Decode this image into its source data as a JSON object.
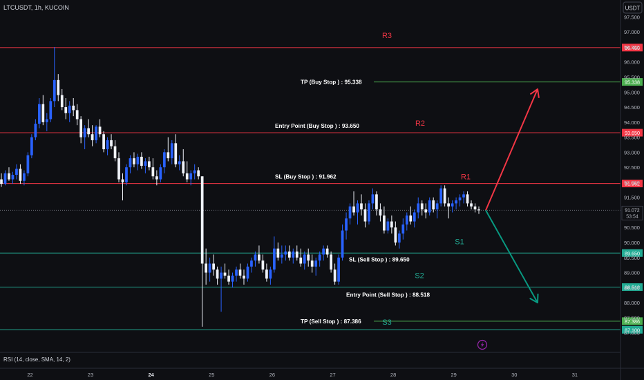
{
  "header": {
    "symbol_info": "LTCUSDT, 1h, KUCOIN",
    "currency_button": "USDT"
  },
  "footer": {
    "rsi_label": "RSI (14, close, SMA, 14, 2)"
  },
  "colors": {
    "background": "#0e0f13",
    "up_candle": "#2962ff",
    "down_candle": "#f0f3fa",
    "resistance": "#f23645",
    "support": "#22ab94",
    "tp_line": "#4caf50",
    "text": "#d1d4dc",
    "muted_text": "#b2b5be",
    "arrow_up": "#f23645",
    "arrow_down": "#089981",
    "lightning": "#9c27b0"
  },
  "chart_data": {
    "type": "candlestick",
    "title": "LTCUSDT, 1h, KUCOIN",
    "ylim": [
      86.9,
      97.9
    ],
    "y_ticks": [
      "97.500",
      "97.000",
      "96.500",
      "96.000",
      "95.500",
      "95.000",
      "94.500",
      "94.000",
      "93.500",
      "93.000",
      "92.500",
      "92.000",
      "91.500",
      "91.000",
      "90.500",
      "90.000",
      "89.500",
      "89.000",
      "88.500",
      "88.000",
      "87.500",
      "87.000"
    ],
    "x_ticks": [
      {
        "label": "22",
        "bold": false
      },
      {
        "label": "23",
        "bold": false
      },
      {
        "label": "24",
        "bold": true
      },
      {
        "label": "25",
        "bold": false
      },
      {
        "label": "26",
        "bold": false
      },
      {
        "label": "27",
        "bold": false
      },
      {
        "label": "28",
        "bold": false
      },
      {
        "label": "29",
        "bold": false
      },
      {
        "label": "30",
        "bold": false
      },
      {
        "label": "31",
        "bold": false
      }
    ],
    "current_price": "91.072",
    "countdown": "53:54",
    "levels": [
      {
        "name": "R3",
        "price": 96.48,
        "price_label": "96.480",
        "color": "#f23645",
        "kind": "resistance",
        "text": "R3"
      },
      {
        "name": "TP_buy",
        "price": 95.338,
        "price_label": "95.338",
        "color": "#4caf50",
        "kind": "tp",
        "text": "TP (Buy Stop ) : 95.338"
      },
      {
        "name": "R2",
        "price": 93.65,
        "price_label": "93.650",
        "color": "#f23645",
        "kind": "resistance",
        "text": "R2",
        "sub": "Entry Point (Buy Stop ) : 93.650"
      },
      {
        "name": "R1",
        "price": 91.962,
        "price_label": "91.962",
        "color": "#f23645",
        "kind": "resistance",
        "text": "R1",
        "sub": "SL (Buy Stop ) : 91.962"
      },
      {
        "name": "S1",
        "price": 89.65,
        "price_label": "89.650",
        "color": "#22ab94",
        "kind": "support",
        "text": "S1",
        "sub": "SL (Sell Stop ) : 89.650"
      },
      {
        "name": "S2",
        "price": 88.518,
        "price_label": "88.518",
        "color": "#22ab94",
        "kind": "support",
        "text": "S2",
        "sub": "Entry Point (Sell Stop ) : 88.518"
      },
      {
        "name": "TP_sell",
        "price": 87.386,
        "price_label": "87.386",
        "color": "#4caf50",
        "kind": "tp",
        "text": "TP (Sell Stop ) : 87.386",
        "sub_s3": "S3"
      },
      {
        "name": "S3",
        "price": 87.1,
        "price_label": "87.100",
        "color": "#22ab94",
        "kind": "support"
      }
    ],
    "candles": [
      [
        92.1,
        92.3,
        91.85,
        91.95
      ],
      [
        91.95,
        92.4,
        91.9,
        92.3
      ],
      [
        92.3,
        92.5,
        92.05,
        92.1
      ],
      [
        92.1,
        92.35,
        91.95,
        92.25
      ],
      [
        92.25,
        92.6,
        92.1,
        92.45
      ],
      [
        92.45,
        92.6,
        91.95,
        92.05
      ],
      [
        92.05,
        92.4,
        91.9,
        92.3
      ],
      [
        92.3,
        93.0,
        92.2,
        92.9
      ],
      [
        92.9,
        93.6,
        92.8,
        93.5
      ],
      [
        93.5,
        94.1,
        93.4,
        93.95
      ],
      [
        93.95,
        94.8,
        93.8,
        94.6
      ],
      [
        94.6,
        94.9,
        93.9,
        94.0
      ],
      [
        94.0,
        94.3,
        93.7,
        94.1
      ],
      [
        94.1,
        94.8,
        94.0,
        94.7
      ],
      [
        94.7,
        96.5,
        94.5,
        95.4
      ],
      [
        95.4,
        95.6,
        94.7,
        94.9
      ],
      [
        94.9,
        95.1,
        94.4,
        94.5
      ],
      [
        94.5,
        94.8,
        94.1,
        94.3
      ],
      [
        94.3,
        94.7,
        94.0,
        94.55
      ],
      [
        94.55,
        94.8,
        94.2,
        94.4
      ],
      [
        94.4,
        94.6,
        93.9,
        94.1
      ],
      [
        94.1,
        94.2,
        93.3,
        93.5
      ],
      [
        93.5,
        93.9,
        93.1,
        93.8
      ],
      [
        93.8,
        94.1,
        93.5,
        93.6
      ],
      [
        93.6,
        93.9,
        93.2,
        93.4
      ],
      [
        93.4,
        93.9,
        93.3,
        93.85
      ],
      [
        93.85,
        94.1,
        93.5,
        93.6
      ],
      [
        93.6,
        93.7,
        93.0,
        93.1
      ],
      [
        93.1,
        93.5,
        92.9,
        93.4
      ],
      [
        93.4,
        93.6,
        93.1,
        93.2
      ],
      [
        93.2,
        93.4,
        92.7,
        92.8
      ],
      [
        92.8,
        93.0,
        92.0,
        92.1
      ],
      [
        92.1,
        92.3,
        91.4,
        92.0
      ],
      [
        92.0,
        92.6,
        91.9,
        92.5
      ],
      [
        92.5,
        92.9,
        92.3,
        92.8
      ],
      [
        92.8,
        93.0,
        92.5,
        92.6
      ],
      [
        92.6,
        92.95,
        92.4,
        92.85
      ],
      [
        92.85,
        93.0,
        92.45,
        92.55
      ],
      [
        92.55,
        92.8,
        92.3,
        92.7
      ],
      [
        92.7,
        92.85,
        92.4,
        92.5
      ],
      [
        92.5,
        92.8,
        92.1,
        92.2
      ],
      [
        92.2,
        92.4,
        91.9,
        92.1
      ],
      [
        92.1,
        92.6,
        92.0,
        92.5
      ],
      [
        92.5,
        93.1,
        92.3,
        93.0
      ],
      [
        93.0,
        93.5,
        92.7,
        92.8
      ],
      [
        92.8,
        93.4,
        92.6,
        93.3
      ],
      [
        93.3,
        93.6,
        92.5,
        92.6
      ],
      [
        92.6,
        92.9,
        92.4,
        92.7
      ],
      [
        92.7,
        93.1,
        92.2,
        92.3
      ],
      [
        92.3,
        92.7,
        92.0,
        92.1
      ],
      [
        92.1,
        92.4,
        91.9,
        92.3
      ],
      [
        92.3,
        92.6,
        92.1,
        92.4
      ],
      [
        92.4,
        92.5,
        92.1,
        92.2
      ],
      [
        92.2,
        92.2,
        87.2,
        89.3
      ],
      [
        89.3,
        89.8,
        88.6,
        89.0
      ],
      [
        89.0,
        89.5,
        88.7,
        89.3
      ],
      [
        89.3,
        89.6,
        88.9,
        89.1
      ],
      [
        89.1,
        89.2,
        88.6,
        88.8
      ],
      [
        88.8,
        89.2,
        87.7,
        89.0
      ],
      [
        89.0,
        89.3,
        88.8,
        88.9
      ],
      [
        88.9,
        89.1,
        88.6,
        88.7
      ],
      [
        88.7,
        89.0,
        88.5,
        88.9
      ],
      [
        88.9,
        89.2,
        88.7,
        89.1
      ],
      [
        89.1,
        89.3,
        88.8,
        88.9
      ],
      [
        88.9,
        89.1,
        88.6,
        88.8
      ],
      [
        88.8,
        89.3,
        88.7,
        89.2
      ],
      [
        89.2,
        89.5,
        89.0,
        89.4
      ],
      [
        89.4,
        89.7,
        89.2,
        89.6
      ],
      [
        89.6,
        89.9,
        89.3,
        89.4
      ],
      [
        89.4,
        89.6,
        89.0,
        89.1
      ],
      [
        89.1,
        89.3,
        88.7,
        88.8
      ],
      [
        88.8,
        89.2,
        88.6,
        89.1
      ],
      [
        89.1,
        90.2,
        89.0,
        89.8
      ],
      [
        89.8,
        90.0,
        89.4,
        89.5
      ],
      [
        89.5,
        89.9,
        89.3,
        89.6
      ],
      [
        89.6,
        89.9,
        89.4,
        89.7
      ],
      [
        89.7,
        89.9,
        89.4,
        89.5
      ],
      [
        89.5,
        89.8,
        89.3,
        89.7
      ],
      [
        89.7,
        89.9,
        89.4,
        89.5
      ],
      [
        89.5,
        89.8,
        89.2,
        89.3
      ],
      [
        89.3,
        89.7,
        89.1,
        89.6
      ],
      [
        89.6,
        89.8,
        89.2,
        89.4
      ],
      [
        89.4,
        89.6,
        89.0,
        89.2
      ],
      [
        89.2,
        89.5,
        88.9,
        89.4
      ],
      [
        89.4,
        89.7,
        89.2,
        89.6
      ],
      [
        89.6,
        89.9,
        89.4,
        89.8
      ],
      [
        89.8,
        89.9,
        89.5,
        89.6
      ],
      [
        89.6,
        89.7,
        89.0,
        89.1
      ],
      [
        89.1,
        89.3,
        88.6,
        88.7
      ],
      [
        88.7,
        89.6,
        88.6,
        89.5
      ],
      [
        89.5,
        90.6,
        89.4,
        90.4
      ],
      [
        90.4,
        91.0,
        90.1,
        90.8
      ],
      [
        90.8,
        91.3,
        90.6,
        91.2
      ],
      [
        91.2,
        91.7,
        90.9,
        91.0
      ],
      [
        91.0,
        91.4,
        90.6,
        91.3
      ],
      [
        91.3,
        91.6,
        90.9,
        91.1
      ],
      [
        91.1,
        91.3,
        90.5,
        90.7
      ],
      [
        90.7,
        91.4,
        90.6,
        91.3
      ],
      [
        91.3,
        91.8,
        91.1,
        91.6
      ],
      [
        91.6,
        91.7,
        90.9,
        91.1
      ],
      [
        91.1,
        91.3,
        90.7,
        90.9
      ],
      [
        90.9,
        91.2,
        90.3,
        90.4
      ],
      [
        90.4,
        90.8,
        90.3,
        90.7
      ],
      [
        90.7,
        90.9,
        90.3,
        90.5
      ],
      [
        90.5,
        90.7,
        89.9,
        90.0
      ],
      [
        90.0,
        90.4,
        89.8,
        90.3
      ],
      [
        90.3,
        90.8,
        90.1,
        90.6
      ],
      [
        90.6,
        91.0,
        90.4,
        90.9
      ],
      [
        90.9,
        91.2,
        90.6,
        90.7
      ],
      [
        90.7,
        91.1,
        90.5,
        91.0
      ],
      [
        91.0,
        91.5,
        90.8,
        91.3
      ],
      [
        91.3,
        91.4,
        90.9,
        91.1
      ],
      [
        91.1,
        91.3,
        90.8,
        91.0
      ],
      [
        91.0,
        91.5,
        90.9,
        91.4
      ],
      [
        91.4,
        91.5,
        91.0,
        91.1
      ],
      [
        91.1,
        91.4,
        90.8,
        91.3
      ],
      [
        91.3,
        91.9,
        91.2,
        91.8
      ],
      [
        91.8,
        91.9,
        91.2,
        91.3
      ],
      [
        91.3,
        91.5,
        90.8,
        91.2
      ],
      [
        91.2,
        91.4,
        91.0,
        91.3
      ],
      [
        91.3,
        91.5,
        91.1,
        91.4
      ],
      [
        91.4,
        91.6,
        91.2,
        91.5
      ],
      [
        91.5,
        91.7,
        91.3,
        91.6
      ],
      [
        91.6,
        91.7,
        91.2,
        91.3
      ],
      [
        91.3,
        91.4,
        91.1,
        91.2
      ],
      [
        91.2,
        91.3,
        91.0,
        91.1
      ],
      [
        91.1,
        91.2,
        90.95,
        91.07
      ]
    ],
    "arrows": [
      {
        "direction": "up",
        "from_price": 91.07,
        "to_price": 95.1,
        "color": "#f23645"
      },
      {
        "direction": "down",
        "from_price": 91.07,
        "to_price": 88.0,
        "color": "#089981"
      }
    ]
  }
}
